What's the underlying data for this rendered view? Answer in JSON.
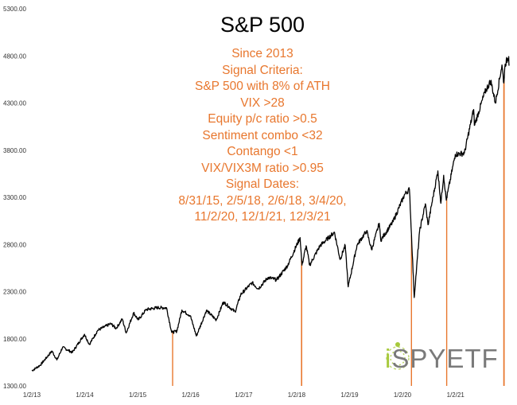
{
  "chart_data": {
    "type": "line",
    "title": "S&P 500",
    "annotation_lines": [
      "Since 2013",
      "Signal Criteria:",
      "S&P 500 with 8% of ATH",
      "VIX >28",
      "Equity p/c ratio >0.5",
      "Sentiment combo <32",
      "Contango <1",
      "VIX/VIX3M ratio >0.95",
      "Signal Dates:",
      "8/31/15, 2/5/18, 2/6/18, 3/4/20,",
      "11/2/20, 12/1/21, 12/3/21"
    ],
    "xlabel": "",
    "ylabel": "",
    "ylim": [
      1300,
      5300
    ],
    "y_ticks": [
      "1300.00",
      "1800.00",
      "2300.00",
      "2800.00",
      "3300.00",
      "3800.00",
      "4300.00",
      "4800.00",
      "5300.00"
    ],
    "x_ticks": [
      "1/2/13",
      "1/2/14",
      "1/2/15",
      "1/2/16",
      "1/2/17",
      "1/2/18",
      "1/2/19",
      "1/2/20",
      "1/2/21"
    ],
    "xlim": [
      "2013-01-02",
      "2022-01-06"
    ],
    "grid": false,
    "series": [
      {
        "color": "#000000",
        "points": [
          [
            "2013-01-02",
            1460
          ],
          [
            "2013-03-01",
            1520
          ],
          [
            "2013-05-21",
            1670
          ],
          [
            "2013-06-24",
            1575
          ],
          [
            "2013-08-02",
            1710
          ],
          [
            "2013-10-08",
            1655
          ],
          [
            "2013-12-31",
            1848
          ],
          [
            "2014-02-03",
            1740
          ],
          [
            "2014-04-02",
            1890
          ],
          [
            "2014-06-30",
            1960
          ],
          [
            "2014-08-07",
            1910
          ],
          [
            "2014-09-18",
            2010
          ],
          [
            "2014-10-15",
            1862
          ],
          [
            "2014-12-05",
            2075
          ],
          [
            "2015-01-06",
            2000
          ],
          [
            "2015-03-02",
            2110
          ],
          [
            "2015-05-21",
            2130
          ],
          [
            "2015-07-20",
            2128
          ],
          [
            "2015-08-25",
            1867
          ],
          [
            "2015-09-29",
            1880
          ],
          [
            "2015-11-03",
            2105
          ],
          [
            "2015-12-31",
            2044
          ],
          [
            "2016-02-11",
            1829
          ],
          [
            "2016-04-20",
            2100
          ],
          [
            "2016-06-27",
            2000
          ],
          [
            "2016-08-15",
            2190
          ],
          [
            "2016-11-04",
            2085
          ],
          [
            "2016-12-13",
            2270
          ],
          [
            "2017-03-01",
            2395
          ],
          [
            "2017-04-13",
            2330
          ],
          [
            "2017-06-19",
            2450
          ],
          [
            "2017-08-18",
            2425
          ],
          [
            "2017-10-31",
            2575
          ],
          [
            "2018-01-26",
            2873
          ],
          [
            "2018-02-08",
            2581
          ],
          [
            "2018-03-09",
            2786
          ],
          [
            "2018-04-02",
            2581
          ],
          [
            "2018-06-12",
            2786
          ],
          [
            "2018-09-20",
            2930
          ],
          [
            "2018-10-29",
            2641
          ],
          [
            "2018-12-03",
            2790
          ],
          [
            "2018-12-24",
            2351
          ],
          [
            "2019-02-22",
            2792
          ],
          [
            "2019-04-30",
            2945
          ],
          [
            "2019-06-03",
            2744
          ],
          [
            "2019-07-26",
            3025
          ],
          [
            "2019-08-05",
            2845
          ],
          [
            "2019-10-28",
            3039
          ],
          [
            "2020-01-17",
            3330
          ],
          [
            "2020-02-19",
            3386
          ],
          [
            "2020-03-23",
            2237
          ],
          [
            "2020-04-29",
            2939
          ],
          [
            "2020-06-08",
            3232
          ],
          [
            "2020-06-26",
            3009
          ],
          [
            "2020-09-02",
            3580
          ],
          [
            "2020-09-23",
            3237
          ],
          [
            "2020-10-12",
            3534
          ],
          [
            "2020-10-30",
            3270
          ],
          [
            "2020-12-31",
            3756
          ],
          [
            "2021-03-04",
            3768
          ],
          [
            "2021-05-07",
            4232
          ],
          [
            "2021-05-12",
            4063
          ],
          [
            "2021-07-23",
            4411
          ],
          [
            "2021-09-02",
            4537
          ],
          [
            "2021-10-04",
            4300
          ],
          [
            "2021-11-18",
            4704
          ],
          [
            "2021-12-01",
            4513
          ],
          [
            "2021-12-10",
            4712
          ],
          [
            "2022-01-04",
            4793
          ],
          [
            "2022-01-06",
            4696
          ]
        ]
      }
    ],
    "signal_dates": [
      "2015-08-31",
      "2018-02-05",
      "2018-02-06",
      "2020-03-04",
      "2020-11-02",
      "2021-12-01",
      "2021-12-03"
    ],
    "signal_color": "#e8772e"
  },
  "watermark": {
    "brand": "iSPYETF"
  }
}
